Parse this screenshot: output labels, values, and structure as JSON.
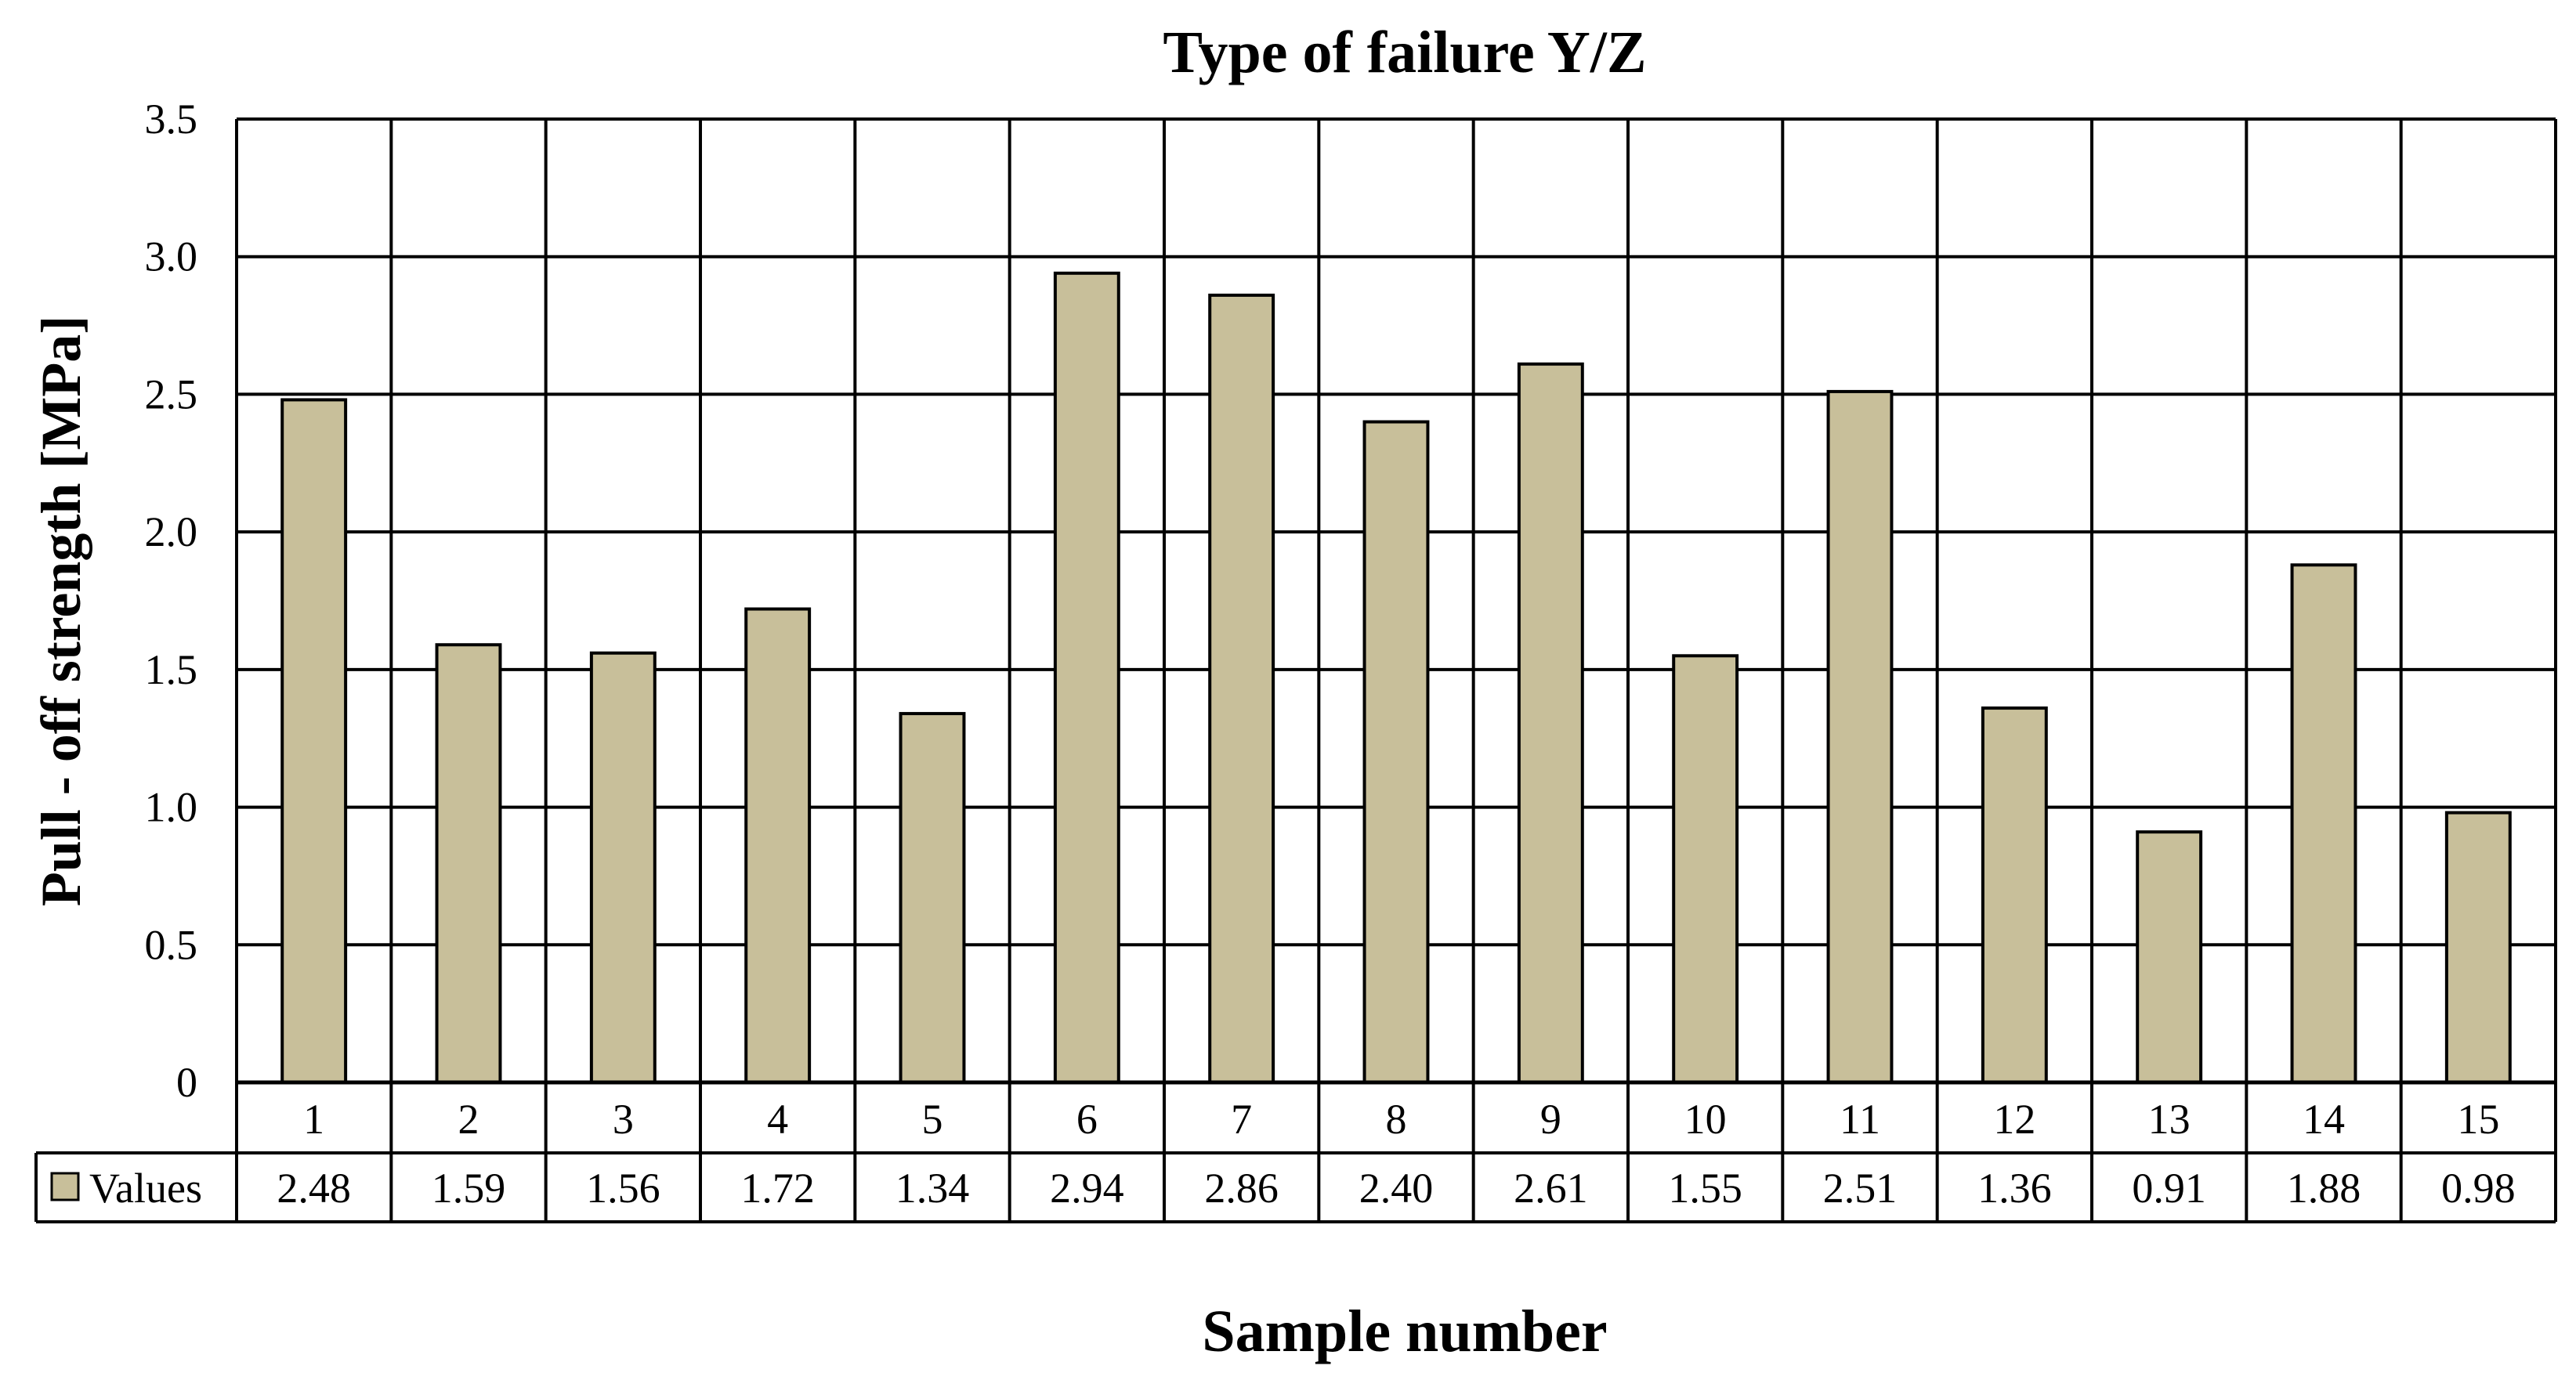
{
  "chart_data": {
    "type": "bar",
    "title": "Type of failure Y/Z",
    "xlabel": "Sample number",
    "ylabel": "Pull - off strength [MPa]",
    "ylim": [
      0,
      3.5
    ],
    "yticks": [
      "0",
      "0.5",
      "1.0",
      "1.5",
      "2.0",
      "2.5",
      "3.0",
      "3.5"
    ],
    "grid": true,
    "legend": {
      "placement": "data-table-left"
    },
    "categories": [
      "1",
      "2",
      "3",
      "4",
      "5",
      "6",
      "7",
      "8",
      "9",
      "10",
      "11",
      "12",
      "13",
      "14",
      "15"
    ],
    "series": [
      {
        "name": "Values",
        "color": "#c8bf9a",
        "values": [
          2.48,
          1.59,
          1.56,
          1.72,
          1.34,
          2.94,
          2.86,
          2.4,
          2.61,
          1.55,
          2.51,
          1.36,
          0.91,
          1.88,
          0.98
        ],
        "labels": [
          "2.48",
          "1.59",
          "1.56",
          "1.72",
          "1.34",
          "2.94",
          "2.86",
          "2.40",
          "2.61",
          "1.55",
          "2.51",
          "1.36",
          "0.91",
          "1.88",
          "0.98"
        ]
      }
    ]
  }
}
